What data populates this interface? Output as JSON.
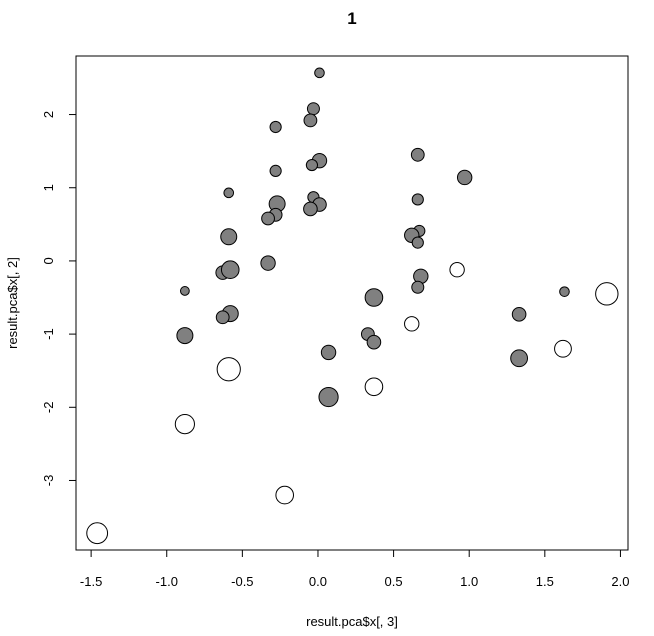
{
  "chart_data": {
    "type": "scatter",
    "title": "1",
    "xlabel": "result.pca$x[, 3]",
    "ylabel": "result.pca$x[, 2]",
    "xlim": [
      -1.6,
      2.05
    ],
    "ylim": [
      -3.95,
      2.8
    ],
    "xticks": [
      "-1.5",
      "-1.0",
      "-0.5",
      "0.0",
      "0.5",
      "1.0",
      "1.5",
      "2.0"
    ],
    "yticks": [
      "-3",
      "-2",
      "-1",
      "0",
      "1",
      "2"
    ],
    "grid": false,
    "legend": "none",
    "colors": {
      "filled": "#808080",
      "open": "#ffffff",
      "stroke": "#000000"
    },
    "series": [
      {
        "fill": "filled",
        "points": [
          {
            "x": 0.01,
            "y": 2.57,
            "size": 0.6
          },
          {
            "x": -0.03,
            "y": 2.08,
            "size": 0.75
          },
          {
            "x": -0.05,
            "y": 1.92,
            "size": 0.8
          },
          {
            "x": -0.28,
            "y": 1.83,
            "size": 0.7
          },
          {
            "x": 0.01,
            "y": 1.37,
            "size": 0.9
          },
          {
            "x": -0.04,
            "y": 1.31,
            "size": 0.7
          },
          {
            "x": -0.28,
            "y": 1.23,
            "size": 0.7
          },
          {
            "x": -0.59,
            "y": 0.93,
            "size": 0.6
          },
          {
            "x": -0.03,
            "y": 0.87,
            "size": 0.7
          },
          {
            "x": -0.27,
            "y": 0.78,
            "size": 1.0
          },
          {
            "x": 0.01,
            "y": 0.77,
            "size": 0.85
          },
          {
            "x": -0.05,
            "y": 0.71,
            "size": 0.85
          },
          {
            "x": -0.28,
            "y": 0.63,
            "size": 0.8
          },
          {
            "x": -0.33,
            "y": 0.58,
            "size": 0.8
          },
          {
            "x": -0.59,
            "y": 0.33,
            "size": 1.0
          },
          {
            "x": 0.66,
            "y": 1.45,
            "size": 0.8
          },
          {
            "x": 0.97,
            "y": 1.14,
            "size": 0.9
          },
          {
            "x": 0.66,
            "y": 0.84,
            "size": 0.7
          },
          {
            "x": 0.67,
            "y": 0.41,
            "size": 0.7
          },
          {
            "x": 0.62,
            "y": 0.35,
            "size": 0.9
          },
          {
            "x": 0.66,
            "y": 0.25,
            "size": 0.7
          },
          {
            "x": -0.33,
            "y": -0.03,
            "size": 0.9
          },
          {
            "x": -0.63,
            "y": -0.16,
            "size": 0.85
          },
          {
            "x": -0.58,
            "y": -0.12,
            "size": 1.1
          },
          {
            "x": 0.68,
            "y": -0.21,
            "size": 0.9
          },
          {
            "x": 0.66,
            "y": -0.36,
            "size": 0.75
          },
          {
            "x": -0.88,
            "y": -0.41,
            "size": 0.55
          },
          {
            "x": 0.37,
            "y": -0.5,
            "size": 1.1
          },
          {
            "x": -0.58,
            "y": -0.72,
            "size": 1.0
          },
          {
            "x": -0.63,
            "y": -0.77,
            "size": 0.8
          },
          {
            "x": 1.63,
            "y": -0.42,
            "size": 0.6
          },
          {
            "x": 1.33,
            "y": -0.73,
            "size": 0.85
          },
          {
            "x": -0.88,
            "y": -1.02,
            "size": 1.0
          },
          {
            "x": 0.33,
            "y": -1.0,
            "size": 0.8
          },
          {
            "x": 0.37,
            "y": -1.11,
            "size": 0.85
          },
          {
            "x": 0.07,
            "y": -1.25,
            "size": 0.9
          },
          {
            "x": 1.33,
            "y": -1.33,
            "size": 1.05
          },
          {
            "x": 0.07,
            "y": -1.86,
            "size": 1.2
          }
        ]
      },
      {
        "fill": "open",
        "points": [
          {
            "x": 0.92,
            "y": -0.12,
            "size": 0.9
          },
          {
            "x": 1.91,
            "y": -0.45,
            "size": 1.4
          },
          {
            "x": 0.62,
            "y": -0.86,
            "size": 0.9
          },
          {
            "x": 1.62,
            "y": -1.2,
            "size": 1.05
          },
          {
            "x": -0.59,
            "y": -1.48,
            "size": 1.45
          },
          {
            "x": 0.37,
            "y": -1.72,
            "size": 1.1
          },
          {
            "x": -0.88,
            "y": -2.23,
            "size": 1.2
          },
          {
            "x": -0.22,
            "y": -3.2,
            "size": 1.1
          },
          {
            "x": -1.46,
            "y": -3.72,
            "size": 1.3
          }
        ]
      }
    ]
  }
}
